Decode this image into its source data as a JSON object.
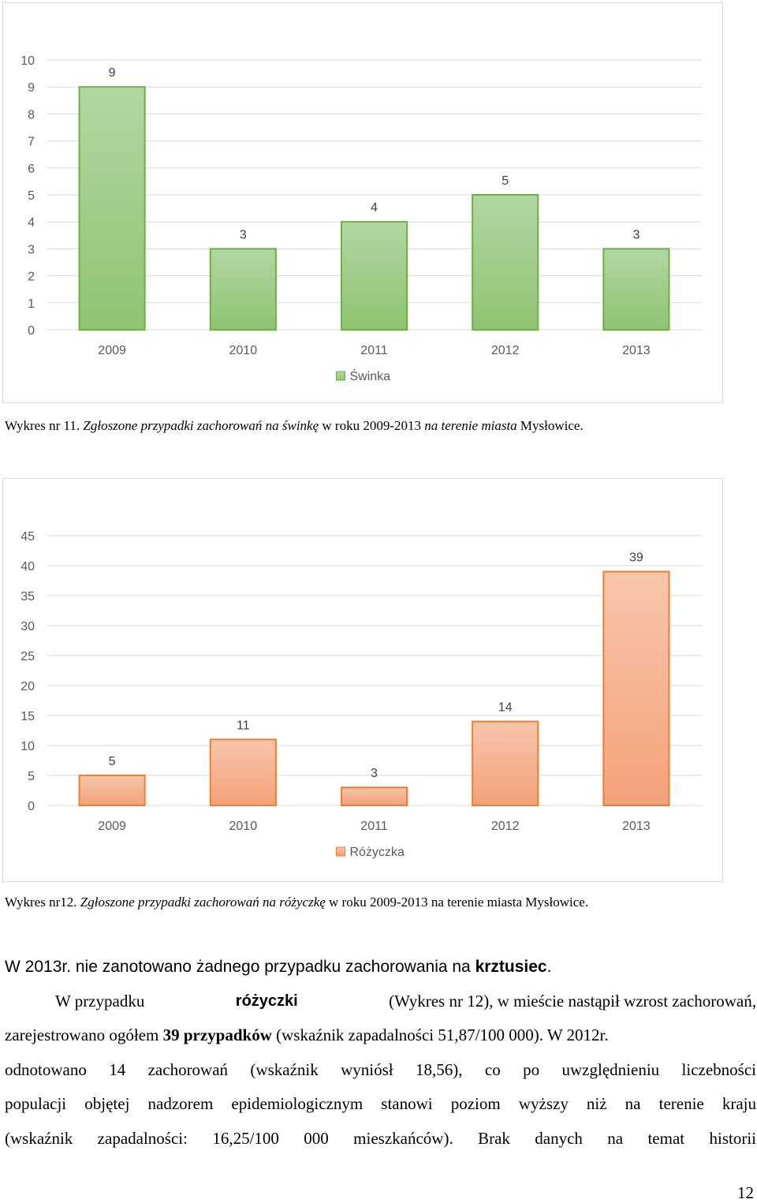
{
  "chart_data": [
    {
      "type": "bar",
      "categories": [
        "2009",
        "2010",
        "2011",
        "2012",
        "2013"
      ],
      "series": [
        {
          "name": "Świnka",
          "values": [
            9,
            3,
            4,
            5,
            3
          ]
        }
      ],
      "ylim": [
        0,
        10
      ],
      "yticks": [
        0,
        1,
        2,
        3,
        4,
        5,
        6,
        7,
        8,
        9,
        10
      ],
      "grid": true,
      "legend": "bottom",
      "colors": {
        "fill_top": "#b3d6a2",
        "fill_bottom": "#8fc472",
        "stroke": "#70ad47"
      }
    },
    {
      "type": "bar",
      "categories": [
        "2009",
        "2010",
        "2011",
        "2012",
        "2013"
      ],
      "series": [
        {
          "name": "Różyczka",
          "values": [
            5,
            11,
            3,
            14,
            39
          ]
        }
      ],
      "ylim": [
        0,
        45
      ],
      "yticks": [
        0,
        5,
        10,
        15,
        20,
        25,
        30,
        35,
        40,
        45
      ],
      "grid": true,
      "legend": "bottom",
      "colors": {
        "fill_top": "#f8c6ab",
        "fill_bottom": "#f4a17a",
        "stroke": "#ed7d31"
      }
    }
  ],
  "captions": {
    "chart1_prefix": "Wykres nr 11. ",
    "chart1_italic1": "Zgłoszone przypadki zachorowań na świnkę",
    "chart1_mid": " w roku 2009-2013 ",
    "chart1_italic2": "na terenie miasta",
    "chart1_suffix": " Mysłowice.",
    "chart2_prefix": "Wykres nr12. ",
    "chart2_italic1": "Zgłoszone przypadki zachorowań na różyczkę",
    "chart2_mid": " w roku 2009-2013 na terenie miasta",
    "chart2_suffix": " Mysłowice."
  },
  "body": {
    "line1_a": "W 2013r. nie zanotowano żadnego przypadku zachorowania na ",
    "line1_bold": "krztusiec",
    "line1_end": ".",
    "line2_a": "W przypadku",
    "line2_bold": "różyczki",
    "line2_b": "(Wykres nr 12), w mieście nastąpił wzrost zachorowań,",
    "line3_a": "zarejestrowano ogółem ",
    "line3_bold": "39 przypadków",
    "line3_b": " (wskaźnik zapadalności 51,87/100 000).  W 2012r.",
    "line4": "odnotowano 14 zachorowań (wskaźnik wyniósł 18,56), co po uwzględnieniu  liczebności",
    "line5": "populacji objętej nadzorem epidemiologicznym stanowi poziom wyższy niż na terenie kraju",
    "line6": "(wskaźnik zapadalności: 16,25/100 000 mieszkańców). Brak danych na temat historii"
  },
  "page_number": "12"
}
